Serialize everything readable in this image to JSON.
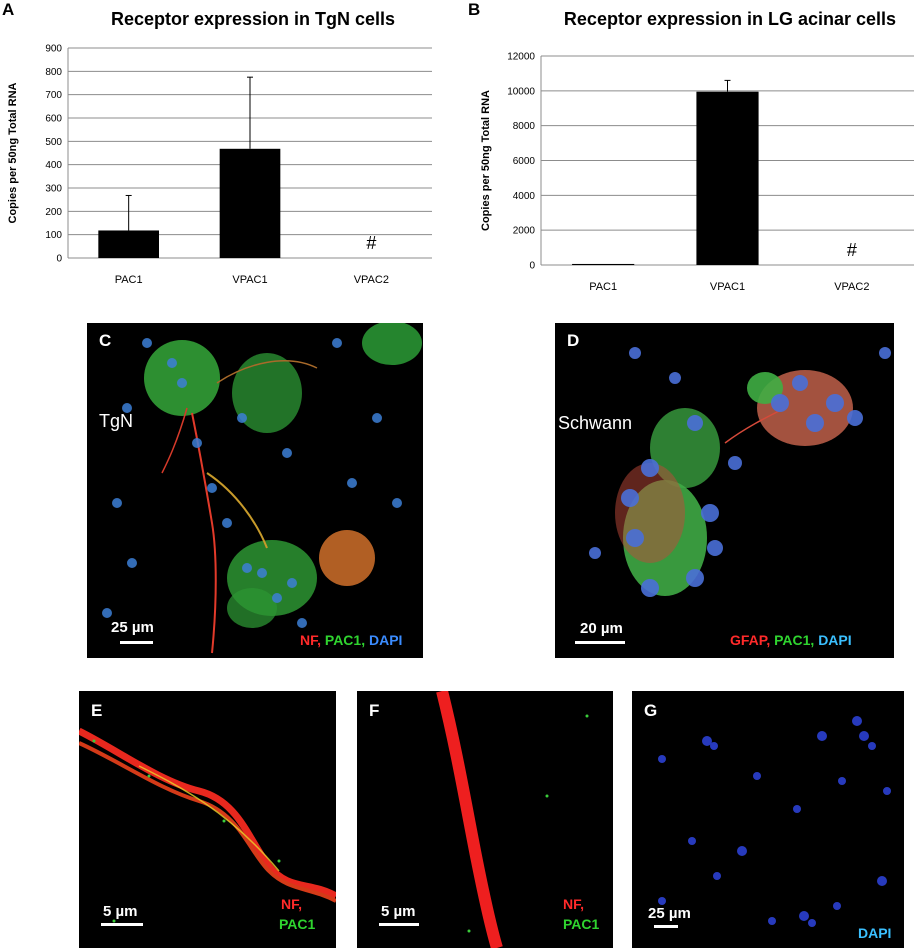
{
  "figure": {
    "panels": {
      "A": "A",
      "B": "B",
      "C": "C",
      "D": "D",
      "E": "E",
      "F": "F",
      "G": "G"
    }
  },
  "chart_data": [
    {
      "type": "bar",
      "title": "Receptor expression in TgN cells",
      "ylabel": "Copies per 50ng Total RNA",
      "xlabel": "",
      "categories": [
        "PAC1",
        "VPAC1",
        "VPAC2"
      ],
      "values": [
        118,
        468,
        0
      ],
      "error_upper": [
        268,
        775,
        null
      ],
      "annotations": [
        "",
        "",
        "#"
      ],
      "ylim": [
        0,
        900
      ],
      "yticks": [
        "0",
        "100",
        "200",
        "300",
        "400",
        "500",
        "600",
        "700",
        "800",
        "900"
      ],
      "grid": true,
      "bar_color": "#000000"
    },
    {
      "type": "bar",
      "title": "Receptor expression in LG acinar cells",
      "ylabel": "Copies per 50ng Total RNA",
      "xlabel": "",
      "categories": [
        "PAC1",
        "VPAC1",
        "VPAC2"
      ],
      "values": [
        60,
        9950,
        0
      ],
      "error_upper": [
        null,
        10600,
        null
      ],
      "annotations": [
        "",
        "",
        "#"
      ],
      "ylim": [
        0,
        12000
      ],
      "yticks": [
        "0",
        "2000",
        "4000",
        "6000",
        "8000",
        "10000",
        "12000"
      ],
      "grid": true,
      "bar_color": "#000000"
    }
  ],
  "micrographs": {
    "C": {
      "sample": "TgN",
      "scale": "25 µm",
      "stain": [
        "NF,",
        "PAC1,",
        "DAPI"
      ]
    },
    "D": {
      "sample": "Schwann",
      "scale": "20 µm",
      "stain": [
        "GFAP,",
        "PAC1,",
        "DAPI"
      ]
    },
    "E": {
      "scale": "5 µm",
      "stain": [
        "NF,",
        "PAC1"
      ]
    },
    "F": {
      "scale": "5 µm",
      "stain": [
        "NF,",
        "PAC1"
      ]
    },
    "G": {
      "scale": "25 µm",
      "stain": [
        "DAPI"
      ]
    }
  },
  "colors": {
    "nf_red": "#ff2a2a",
    "pac1_green": "#2fd42f",
    "dapi_blue": "#3b8cff"
  }
}
